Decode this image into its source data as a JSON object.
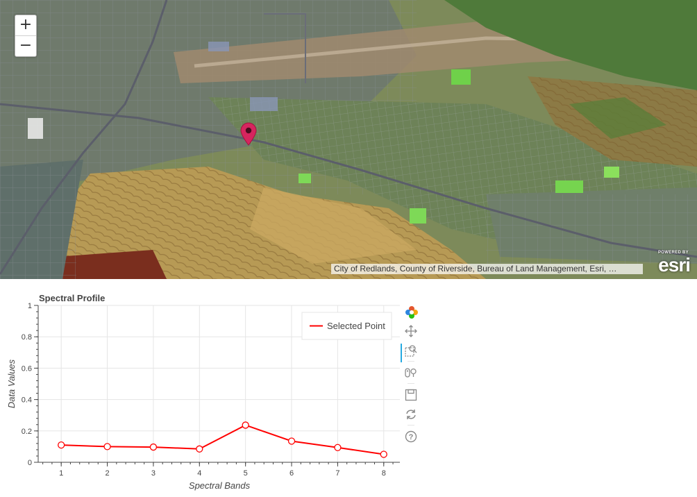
{
  "map": {
    "zoom_in_label": "+",
    "zoom_out_label": "−",
    "attribution": "City of Redlands, County of Riverside, Bureau of Land Management, Esri, …",
    "logo_powered": "POWERED BY",
    "logo_word": "esri",
    "pin_color": "#d6255e"
  },
  "chart_panel": {
    "toolbar": [
      "bokeh-logo-icon",
      "pan-icon",
      "box-zoom-icon",
      "wheel-zoom-icon",
      "save-icon",
      "reset-icon",
      "help-icon"
    ]
  },
  "chart_data": {
    "type": "line",
    "title": "Spectral Profile",
    "xlabel": "Spectral Bands",
    "ylabel": "Data Values",
    "x": [
      1,
      2,
      3,
      4,
      5,
      6,
      7,
      8
    ],
    "xlim": [
      0.5,
      8.35
    ],
    "ylim": [
      0,
      1
    ],
    "x_ticks": [
      "1",
      "2",
      "3",
      "4",
      "5",
      "6",
      "7",
      "8"
    ],
    "y_ticks": [
      "0",
      "0.2",
      "0.4",
      "0.6",
      "0.8",
      "1"
    ],
    "grid": true,
    "legend_position": "top-right",
    "series": [
      {
        "name": "Selected Point",
        "color": "#ff0000",
        "values": [
          0.11,
          0.1,
          0.097,
          0.085,
          0.237,
          0.135,
          0.094,
          0.051
        ]
      }
    ]
  }
}
